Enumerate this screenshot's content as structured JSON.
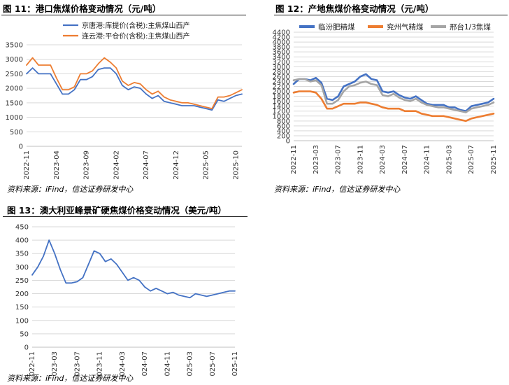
{
  "figures": [
    {
      "title": "图 11：港口焦煤价格变动情况（元/吨）",
      "source": "资料来源：iFind，信达证券研发中心"
    },
    {
      "title": "图 12：产地焦煤价格变动情况（元/吨）",
      "source": "资料来源：iFind，信达证券研发中心"
    },
    {
      "title": "图 13：澳大利亚峰景矿硬焦煤价格变动情况（美元/吨）",
      "source": "资料来源：iFind，信达证券研发中心"
    }
  ],
  "chart_data": [
    {
      "type": "line",
      "title": "图 11：港口焦煤价格变动情况（元/吨）",
      "ylim": [
        0,
        3500
      ],
      "yticks": [
        0,
        500,
        1000,
        1500,
        2000,
        2500,
        3000,
        3500
      ],
      "xlim": [
        "2022-11",
        "2025-11"
      ],
      "xticks": [
        "2022-11",
        "2023-04",
        "2023-09",
        "2024-02",
        "2024-07",
        "2024-12",
        "2025-05",
        "2025-10"
      ],
      "legend_position": "top",
      "grid": "horizontal",
      "series": [
        {
          "name": "京唐港:库提价(含税):主焦煤山西产",
          "color": "#4472c4",
          "x": [
            "2022-11",
            "2022-12",
            "2023-01",
            "2023-02",
            "2023-03",
            "2023-04",
            "2023-05",
            "2023-06",
            "2023-07",
            "2023-08",
            "2023-09",
            "2023-10",
            "2023-11",
            "2023-12",
            "2024-01",
            "2024-02",
            "2024-03",
            "2024-04",
            "2024-05",
            "2024-06",
            "2024-07",
            "2024-08",
            "2024-09",
            "2024-10",
            "2024-11",
            "2024-12",
            "2025-01",
            "2025-02",
            "2025-03",
            "2025-04",
            "2025-05",
            "2025-06",
            "2025-07",
            "2025-08",
            "2025-09",
            "2025-10",
            "2025-11"
          ],
          "values": [
            2500,
            2700,
            2500,
            2500,
            2500,
            2150,
            1800,
            1800,
            1950,
            2300,
            2300,
            2400,
            2650,
            2700,
            2700,
            2500,
            2100,
            1950,
            2050,
            2000,
            1800,
            1650,
            1750,
            1550,
            1500,
            1450,
            1400,
            1400,
            1400,
            1350,
            1300,
            1250,
            1600,
            1550,
            1650,
            1750,
            1800
          ]
        },
        {
          "name": "连云港:平仓价(含税):主焦煤山西产",
          "color": "#ed7d31",
          "x": [
            "2022-11",
            "2022-12",
            "2023-01",
            "2023-02",
            "2023-03",
            "2023-04",
            "2023-05",
            "2023-06",
            "2023-07",
            "2023-08",
            "2023-09",
            "2023-10",
            "2023-11",
            "2023-12",
            "2024-01",
            "2024-02",
            "2024-03",
            "2024-04",
            "2024-05",
            "2024-06",
            "2024-07",
            "2024-08",
            "2024-09",
            "2024-10",
            "2024-11",
            "2024-12",
            "2025-01",
            "2025-02",
            "2025-03",
            "2025-04",
            "2025-05",
            "2025-06",
            "2025-07",
            "2025-08",
            "2025-09",
            "2025-10",
            "2025-11"
          ],
          "values": [
            2800,
            3050,
            2800,
            2800,
            2800,
            2350,
            1950,
            1950,
            2050,
            2500,
            2500,
            2600,
            2850,
            3050,
            2900,
            2700,
            2250,
            2100,
            2200,
            2150,
            1950,
            1800,
            1900,
            1700,
            1600,
            1550,
            1500,
            1500,
            1450,
            1400,
            1350,
            1300,
            1700,
            1700,
            1750,
            1850,
            1950
          ]
        }
      ]
    },
    {
      "type": "line",
      "title": "图 12：产地焦煤价格变动情况（元/吨）",
      "ylim": [
        0,
        4400
      ],
      "yticks": [
        0,
        200,
        400,
        600,
        800,
        1000,
        1200,
        1400,
        1600,
        1800,
        2000,
        2200,
        2400,
        2600,
        2800,
        3000,
        3200,
        3400,
        3600,
        3800,
        4000,
        4200,
        4400
      ],
      "xlim": [
        "2022-11",
        "2025-11"
      ],
      "xticks": [
        "2022-11",
        "2023-03",
        "2023-07",
        "2023-11",
        "2024-03",
        "2024-07",
        "2024-11",
        "2025-03",
        "2025-07",
        "2025-11"
      ],
      "legend_position": "top",
      "grid": "horizontal",
      "series": [
        {
          "name": "临汾肥精煤",
          "color": "#4472c4",
          "x": [
            "2022-11",
            "2022-12",
            "2023-01",
            "2023-02",
            "2023-03",
            "2023-04",
            "2023-05",
            "2023-06",
            "2023-07",
            "2023-08",
            "2023-09",
            "2023-10",
            "2023-11",
            "2023-12",
            "2024-01",
            "2024-02",
            "2024-03",
            "2024-04",
            "2024-05",
            "2024-06",
            "2024-07",
            "2024-08",
            "2024-09",
            "2024-10",
            "2024-11",
            "2024-12",
            "2025-01",
            "2025-02",
            "2025-03",
            "2025-04",
            "2025-05",
            "2025-06",
            "2025-07",
            "2025-08",
            "2025-09",
            "2025-10",
            "2025-11"
          ],
          "values": [
            2300,
            2500,
            2500,
            2450,
            2550,
            2350,
            1700,
            1650,
            1800,
            2200,
            2300,
            2400,
            2600,
            2700,
            2500,
            2450,
            2000,
            1950,
            2000,
            1850,
            1750,
            1700,
            1800,
            1650,
            1500,
            1450,
            1450,
            1450,
            1350,
            1350,
            1250,
            1200,
            1400,
            1450,
            1500,
            1550,
            1700
          ]
        },
        {
          "name": "兖州气精煤",
          "color": "#ed7d31",
          "x": [
            "2022-11",
            "2022-12",
            "2023-01",
            "2023-02",
            "2023-03",
            "2023-04",
            "2023-05",
            "2023-06",
            "2023-07",
            "2023-08",
            "2023-09",
            "2023-10",
            "2023-11",
            "2023-12",
            "2024-01",
            "2024-02",
            "2024-03",
            "2024-04",
            "2024-05",
            "2024-06",
            "2024-07",
            "2024-08",
            "2024-09",
            "2024-10",
            "2024-11",
            "2024-12",
            "2025-01",
            "2025-02",
            "2025-03",
            "2025-04",
            "2025-05",
            "2025-06",
            "2025-07",
            "2025-08",
            "2025-09",
            "2025-10",
            "2025-11"
          ],
          "values": [
            1950,
            2000,
            2000,
            2000,
            1950,
            1700,
            1300,
            1300,
            1400,
            1500,
            1500,
            1500,
            1550,
            1550,
            1500,
            1450,
            1350,
            1300,
            1300,
            1300,
            1200,
            1200,
            1200,
            1100,
            1050,
            1000,
            1000,
            1000,
            950,
            900,
            850,
            800,
            900,
            950,
            1000,
            1050,
            1100
          ]
        },
        {
          "name": "邢台1/3焦煤",
          "color": "#a5a5a5",
          "x": [
            "2022-11",
            "2022-12",
            "2023-01",
            "2023-02",
            "2023-03",
            "2023-04",
            "2023-05",
            "2023-06",
            "2023-07",
            "2023-08",
            "2023-09",
            "2023-10",
            "2023-11",
            "2023-12",
            "2024-01",
            "2024-02",
            "2024-03",
            "2024-04",
            "2024-05",
            "2024-06",
            "2024-07",
            "2024-08",
            "2024-09",
            "2024-10",
            "2024-11",
            "2024-12",
            "2025-01",
            "2025-02",
            "2025-03",
            "2025-04",
            "2025-05",
            "2025-06",
            "2025-07",
            "2025-08",
            "2025-09",
            "2025-10",
            "2025-11"
          ],
          "values": [
            2450,
            2500,
            2500,
            2400,
            2450,
            2250,
            1500,
            1500,
            1650,
            2000,
            2200,
            2250,
            2350,
            2400,
            2300,
            2250,
            1850,
            1800,
            1900,
            1750,
            1650,
            1600,
            1700,
            1550,
            1450,
            1400,
            1350,
            1350,
            1300,
            1250,
            1200,
            1150,
            1300,
            1350,
            1400,
            1450,
            1550
          ]
        }
      ]
    },
    {
      "type": "line",
      "title": "图 13：澳大利亚峰景矿硬焦煤价格变动情况（美元/吨）",
      "ylim": [
        0,
        450
      ],
      "yticks": [
        0,
        50,
        100,
        150,
        200,
        250,
        300,
        350,
        400,
        450
      ],
      "xlim": [
        "2022-11",
        "2025-11"
      ],
      "xticks": [
        "2022-11",
        "2023-03",
        "2023-07",
        "2023-11",
        "2024-03",
        "2024-07",
        "2024-11",
        "2025-03",
        "2025-07",
        "2025-11"
      ],
      "grid": "horizontal",
      "series": [
        {
          "color": "#4472c4",
          "x": [
            "2022-11",
            "2022-12",
            "2023-01",
            "2023-02",
            "2023-03",
            "2023-04",
            "2023-05",
            "2023-06",
            "2023-07",
            "2023-08",
            "2023-09",
            "2023-10",
            "2023-11",
            "2023-12",
            "2024-01",
            "2024-02",
            "2024-03",
            "2024-04",
            "2024-05",
            "2024-06",
            "2024-07",
            "2024-08",
            "2024-09",
            "2024-10",
            "2024-11",
            "2024-12",
            "2025-01",
            "2025-02",
            "2025-03",
            "2025-04",
            "2025-05",
            "2025-06",
            "2025-07",
            "2025-08",
            "2025-09",
            "2025-10",
            "2025-11"
          ],
          "values": [
            270,
            300,
            340,
            400,
            350,
            290,
            240,
            240,
            245,
            260,
            310,
            360,
            350,
            320,
            330,
            310,
            280,
            250,
            260,
            250,
            225,
            210,
            220,
            210,
            200,
            205,
            195,
            190,
            185,
            200,
            195,
            190,
            195,
            200,
            205,
            210,
            210
          ]
        }
      ]
    }
  ]
}
